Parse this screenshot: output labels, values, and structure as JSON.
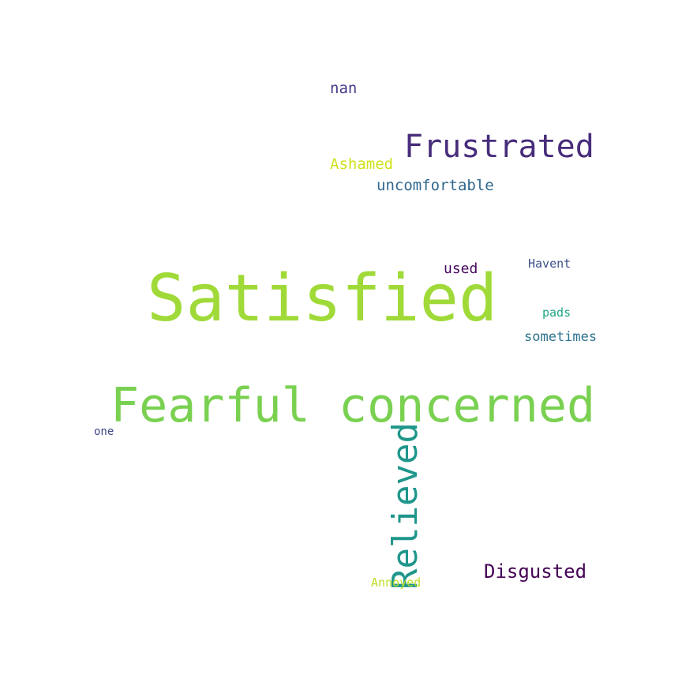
{
  "words": [
    {
      "text": "Satisfied",
      "color": "#a0da39"
    },
    {
      "text": "Fearful concerned",
      "color": "#7ad151"
    },
    {
      "text": "Frustrated",
      "color": "#472d7b"
    },
    {
      "text": "Relieved",
      "color": "#1f968b"
    },
    {
      "text": "Disgusted",
      "color": "#440154"
    },
    {
      "text": "uncomfortable",
      "color": "#31688e"
    },
    {
      "text": "Ashamed",
      "color": "#d0e11c"
    },
    {
      "text": "nan",
      "color": "#443983"
    },
    {
      "text": "used",
      "color": "#46085c"
    },
    {
      "text": "Havent",
      "color": "#3b528b"
    },
    {
      "text": "pads",
      "color": "#21a585"
    },
    {
      "text": "sometimes",
      "color": "#2c728e"
    },
    {
      "text": "one",
      "color": "#3e4989"
    },
    {
      "text": "Annoyed",
      "color": "#bddf26"
    }
  ]
}
